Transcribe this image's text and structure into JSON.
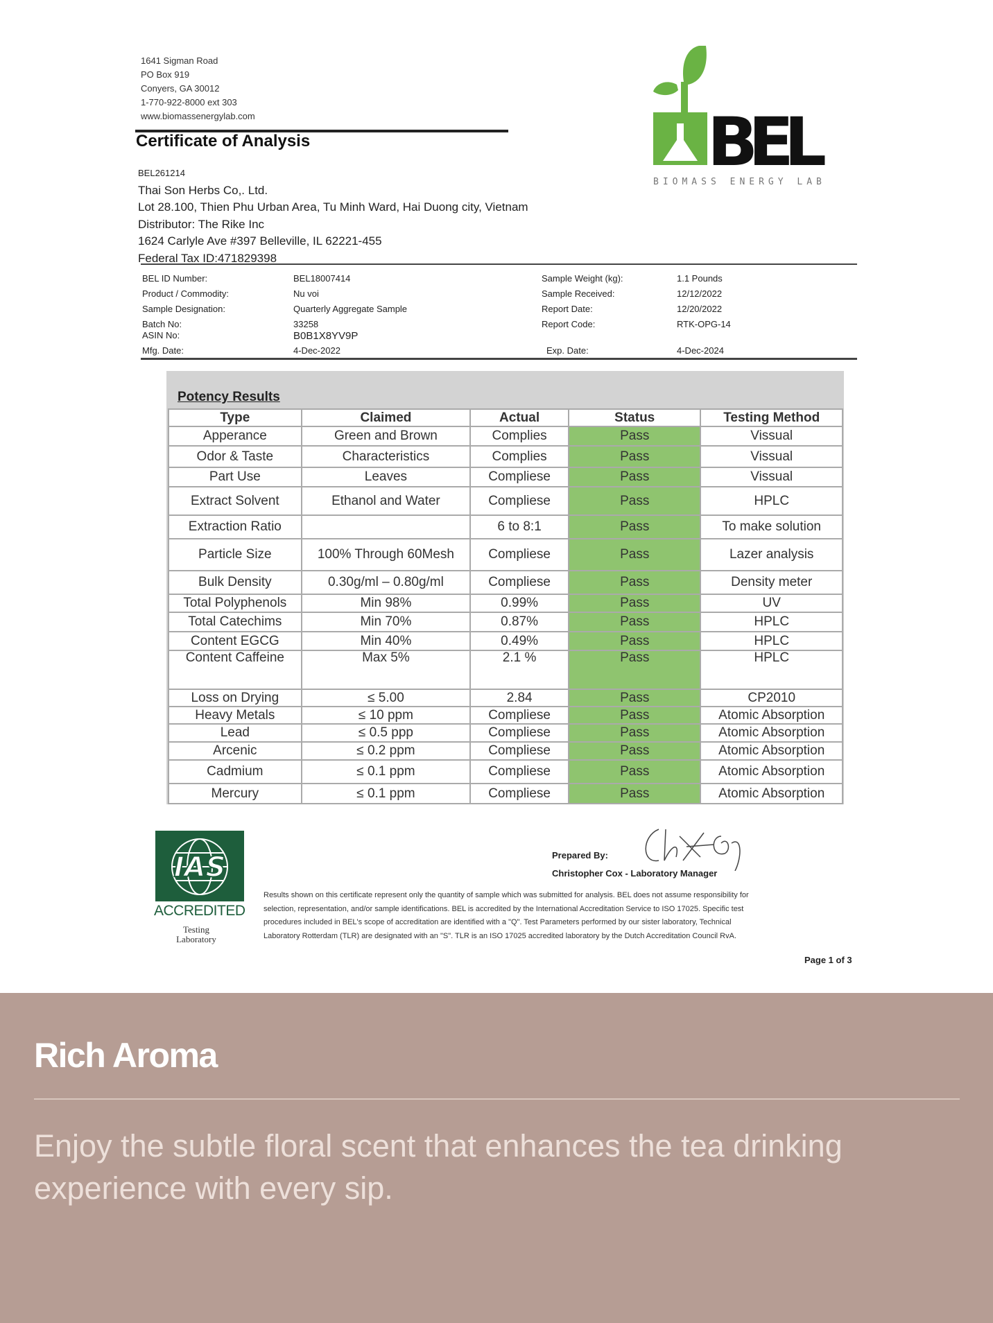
{
  "lab": {
    "address": [
      "1641 Sigman Road",
      "PO Box 919",
      "Conyers, GA 30012",
      "1-770-922-8000 ext 303",
      "www.biomassenergylab.com"
    ],
    "logo_text": "BEL",
    "logo_subtitle": "BIOMASS ENERGY LAB",
    "brand_green": "#6ab344"
  },
  "title": "Certificate of Analysis",
  "client": {
    "code": "BEL261214",
    "lines": [
      "Thai Son Herbs Co,. Ltd.",
      "Lot 28.100, Thien Phu Urban Area, Tu Minh Ward, Hai Duong city, Vietnam",
      "Distributor: The Rike Inc",
      "1624 Carlyle Ave #397 Belleville, IL 62221-455",
      "Federal Tax ID:471829398"
    ]
  },
  "info_left": [
    {
      "label": "BEL ID Number:",
      "value": "BEL18007414"
    },
    {
      "label": "Product / Commodity:",
      "value": "Nu voi"
    },
    {
      "label": "Sample Designation:",
      "value": "Quarterly Aggregate Sample"
    },
    {
      "label": "Batch No:",
      "value": "33258"
    },
    {
      "label": "ASIN No:",
      "value": "B0B1X8YV9P"
    },
    {
      "label": "Mfg. Date:",
      "value": "4-Dec-2022"
    }
  ],
  "info_right": [
    {
      "label": "Sample Weight (kg):",
      "value": "1.1 Pounds"
    },
    {
      "label": "Sample Received:",
      "value": "12/12/2022"
    },
    {
      "label": "Report Date:",
      "value": "12/20/2022"
    },
    {
      "label": "Report Code:",
      "value": "RTK-OPG-14"
    },
    {
      "label": "Exp. Date:",
      "value": "4-Dec-2024"
    }
  ],
  "potency": {
    "heading": "Potency Results",
    "pass_color": "#8fc46f",
    "columns": [
      "Type",
      "Claimed",
      "Actual",
      "Status",
      "Testing Method"
    ],
    "rows": [
      [
        "Apperance",
        "Green and Brown",
        "Complies",
        "Pass",
        "Vissual"
      ],
      [
        "Odor & Taste",
        "Characteristics",
        "Complies",
        "Pass",
        "Vissual"
      ],
      [
        "Part Use",
        "Leaves",
        "Compliese",
        "Pass",
        "Vissual"
      ],
      [
        "Extract Solvent",
        "Ethanol and Water",
        "Compliese",
        "Pass",
        "HPLC"
      ],
      [
        "Extraction Ratio",
        "",
        "6 to 8:1",
        "Pass",
        "To make solution"
      ],
      [
        "Particle Size",
        "100% Through 60Mesh",
        "Compliese",
        "Pass",
        "Lazer analysis"
      ],
      [
        "Bulk Density",
        "0.30g/ml – 0.80g/ml",
        "Compliese",
        "Pass",
        "Density meter"
      ],
      [
        "Total Polyphenols",
        "Min 98%",
        "0.99%",
        "Pass",
        "UV"
      ],
      [
        "Total Catechims",
        "Min 70%",
        "0.87%",
        "Pass",
        "HPLC"
      ],
      [
        "Content EGCG",
        "Min 40%",
        "0.49%",
        "Pass",
        "HPLC"
      ],
      [
        "Content Caffeine",
        "Max 5%",
        "2.1 %",
        "Pass",
        "HPLC"
      ],
      [
        "Loss on Drying",
        "≤ 5.00",
        "2.84",
        "Pass",
        "CP2010"
      ],
      [
        "Heavy Metals",
        "≤ 10 ppm",
        "Compliese",
        "Pass",
        "Atomic Absorption"
      ],
      [
        "Lead",
        "≤ 0.5 ppp",
        "Compliese",
        "Pass",
        "Atomic Absorption"
      ],
      [
        "Arcenic",
        "≤ 0.2 ppm",
        "Compliese",
        "Pass",
        "Atomic Absorption"
      ],
      [
        "Cadmium",
        "≤ 0.1 ppm",
        "Compliese",
        "Pass",
        "Atomic Absorption"
      ],
      [
        "Mercury",
        "≤ 0.1 ppm",
        "Compliese",
        "Pass",
        "Atomic Absorption"
      ]
    ]
  },
  "footer": {
    "ias_logo": "IAS",
    "accredited": "ACCREDITED",
    "testing_lab": "Testing Laboratory",
    "prepared_by": "Prepared By:",
    "signatory": "Christopher Cox - Laboratory Manager",
    "disclaimer": "Results shown on this certificate represent only the quantity of sample which was submitted for analysis. BEL does not assume responsibility for selection, representation, and/or sample identifications. BEL is accredited by the International Accreditation Service to ISO 17025. Specific test procedures included in BEL's scope of accreditation are identified with a \"Q\". Test Parameters performed by our sister laboratory, Technical Laboratory Rotterdam (TLR) are designated with an \"S\". TLR is an ISO 17025 accredited laboratory by the Dutch Accreditation Council RvA.",
    "page": "Page 1 of 3"
  },
  "feature": {
    "title": "Rich Aroma",
    "body": "Enjoy the subtle floral scent that enhances the tea drinking experience with every sip.",
    "background": "#b69d94"
  }
}
